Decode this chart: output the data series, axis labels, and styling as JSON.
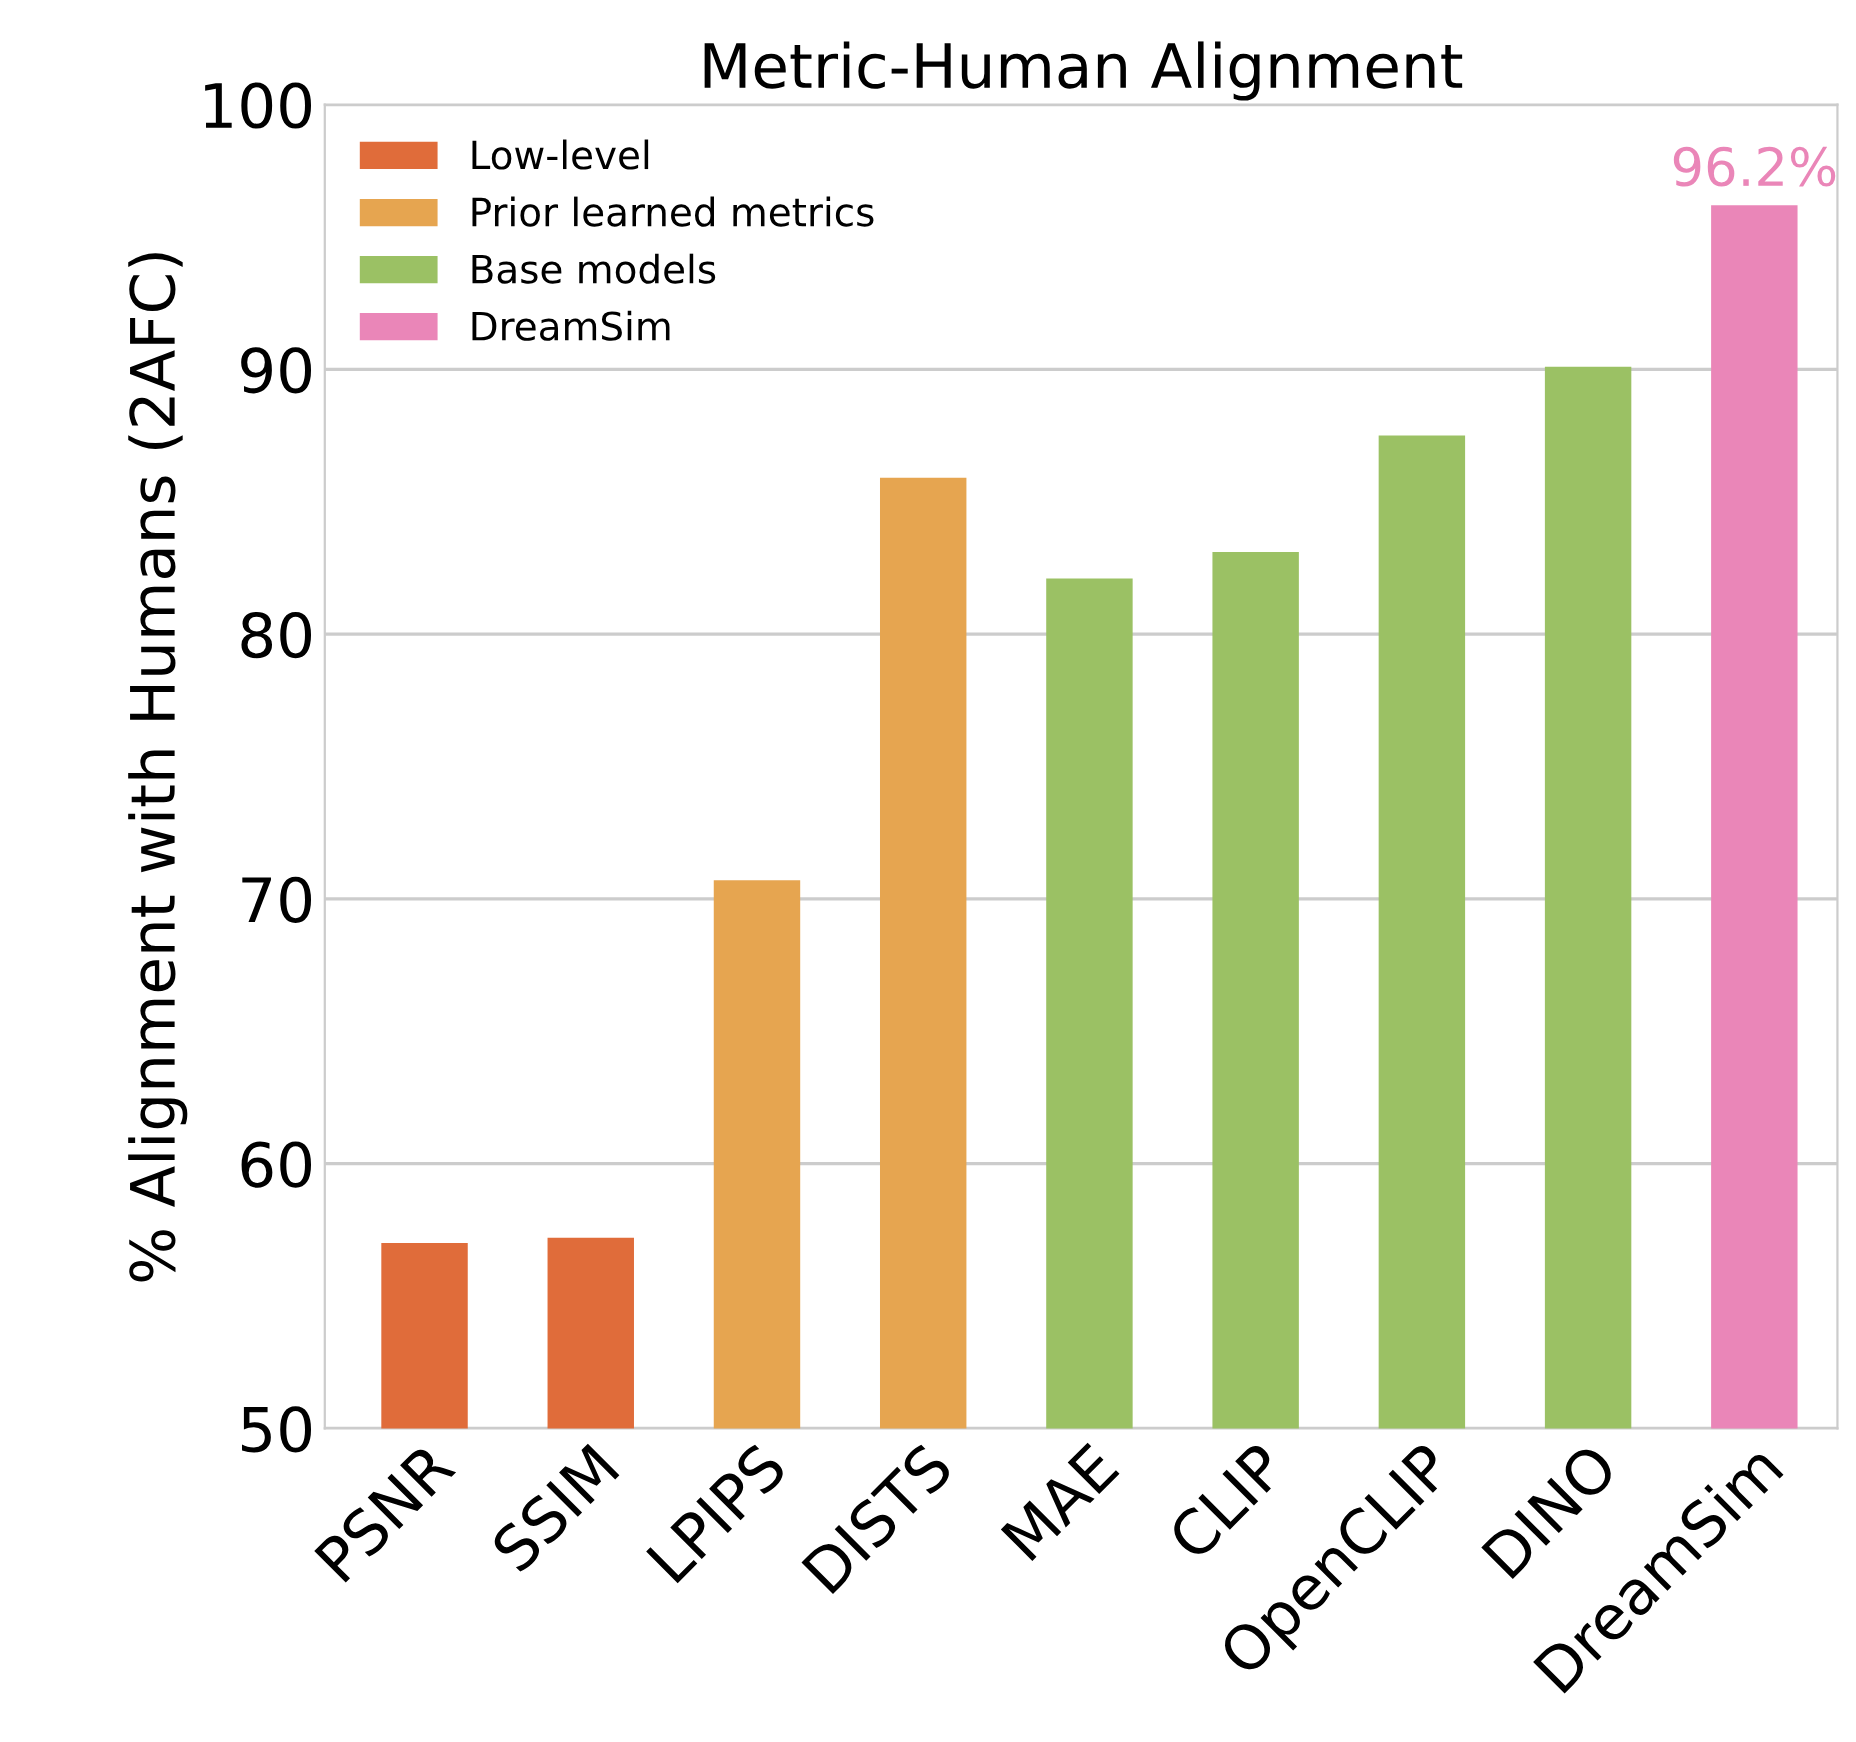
{
  "chart_data": {
    "type": "bar",
    "title": "Metric-Human Alignment",
    "ylabel": "% Alignment with Humans (2AFC)",
    "categories": [
      "PSNR",
      "SSIM",
      "LPIPS",
      "DISTS",
      "MAE",
      "CLIP",
      "OpenCLIP",
      "DINO",
      "DreamSim"
    ],
    "series": [
      {
        "name": "Low-level",
        "color": "#e06c3a",
        "values": [
          57.0,
          57.2,
          null,
          null,
          null,
          null,
          null,
          null,
          null
        ]
      },
      {
        "name": "Prior learned metrics",
        "color": "#e6a550",
        "values": [
          null,
          null,
          70.7,
          85.9,
          null,
          null,
          null,
          null,
          null
        ]
      },
      {
        "name": "Base models",
        "color": "#9bc164",
        "values": [
          null,
          null,
          null,
          null,
          82.1,
          83.1,
          87.5,
          90.1,
          null
        ]
      },
      {
        "name": "DreamSim",
        "color": "#ea86b8",
        "values": [
          null,
          null,
          null,
          null,
          null,
          null,
          null,
          null,
          96.2
        ],
        "value_labels": [
          null,
          null,
          null,
          null,
          null,
          null,
          null,
          null,
          "96.2%"
        ]
      }
    ],
    "ylim": [
      50,
      100
    ],
    "yticks": [
      50,
      60,
      70,
      80,
      90,
      100
    ],
    "grid": "y",
    "legend": "top left"
  }
}
